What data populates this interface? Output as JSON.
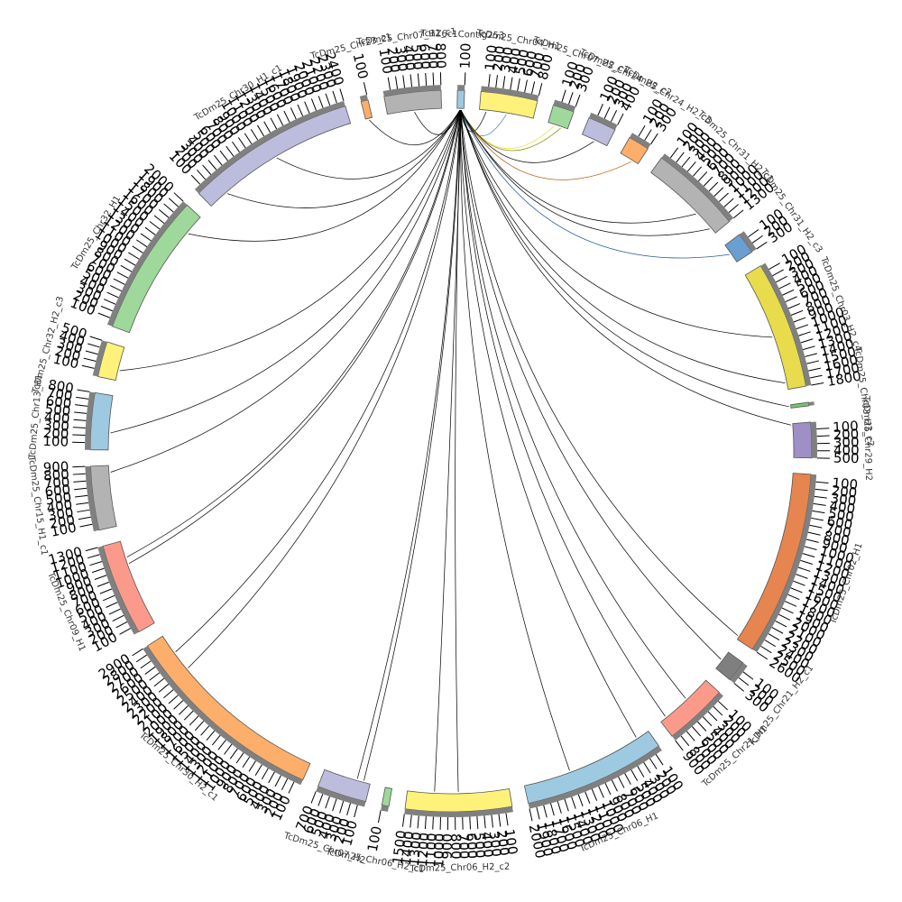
{
  "chart_data": {
    "type": "chord",
    "layout": "circular",
    "tick_step": 100,
    "segments": [
      {
        "name": "TcDm25_Chr07_H1_c1",
        "length": 800,
        "color": "#b3b3b3"
      },
      {
        "name": "Tc1Z6c1Contig253",
        "length": 100,
        "color": "#9ecae1"
      },
      {
        "name": "TcDm25_Chr04_H1",
        "length": 800,
        "color": "#fff27a"
      },
      {
        "name": "TcDm25_Chr07_H2_c1",
        "length": 300,
        "color": "#9fd89b"
      },
      {
        "name": "TcDm25_Chr24_H2_c2",
        "length": 400,
        "color": "#bcbddc"
      },
      {
        "name": "TcDm25_Chr24_H2_c3",
        "length": 300,
        "color": "#fdae6b"
      },
      {
        "name": "TcDm25_Chr31_H2_c1",
        "length": 1300,
        "color": "#b3b3b3"
      },
      {
        "name": "TcDm25_Chr31_H2_c3",
        "length": 300,
        "color": "#6a9fd0"
      },
      {
        "name": "TcDm25_Chr03_H2_c4",
        "length": 1800,
        "color": "#e8dc4c"
      },
      {
        "name": "TcDm25_Chr03_H2_c2",
        "length": 50,
        "color": "#74c476"
      },
      {
        "name": "TcDm25_Chr29_H2",
        "length": 500,
        "color": "#9e8fc6"
      },
      {
        "name": "TcDm25_Chr02_H1",
        "length": 2600,
        "color": "#e6854f"
      },
      {
        "name": "TcDm25_Chr21_H2_c1",
        "length": 300,
        "color": "#7f7f7f"
      },
      {
        "name": "TcDm25_Chr21_H1",
        "length": 900,
        "color": "#fb9a8b"
      },
      {
        "name": "TcDm25_Chr06_H1",
        "length": 2000,
        "color": "#9ecae1"
      },
      {
        "name": "TcDm25_Chr06_H2_c2",
        "length": 1500,
        "color": "#fff27a"
      },
      {
        "name": "TcDm25_Chr06_H2_c1",
        "length": 100,
        "color": "#9fd89b"
      },
      {
        "name": "TcDm25_Chr07_H2",
        "length": 700,
        "color": "#bcbddc"
      },
      {
        "name": "TcDm25_Chr30_H2_c1",
        "length": 2900,
        "color": "#fdae6b"
      },
      {
        "name": "TcDm25_Chr09_H1",
        "length": 1300,
        "color": "#fb9a8b"
      },
      {
        "name": "TcDm25_Chr15_H1_c1",
        "length": 900,
        "color": "#b3b3b3"
      },
      {
        "name": "TcDm25_Chr13_H1",
        "length": 800,
        "color": "#9ecae1"
      },
      {
        "name": "TcDm25_Chr32_H2_c3",
        "length": 500,
        "color": "#fff27a"
      },
      {
        "name": "TcDm25_Chr32_H1",
        "length": 2000,
        "color": "#9fd89b"
      },
      {
        "name": "TcDm25_Chr30_H1_c1",
        "length": 2400,
        "color": "#bcbddc"
      },
      {
        "name": "TcDm25_Chr23_c1",
        "length": 100,
        "color": "#fdae6b"
      }
    ],
    "links": [
      {
        "from": 1,
        "from_pos": 40,
        "to": 2,
        "to_pos": 100,
        "color": "#000000"
      },
      {
        "from": 1,
        "from_pos": 50,
        "to": 2,
        "to_pos": 400,
        "color": "#2c7fb8"
      },
      {
        "from": 1,
        "from_pos": 60,
        "to": 3,
        "to_pos": 100,
        "color": "#dede2a"
      },
      {
        "from": 1,
        "from_pos": 50,
        "to": 3,
        "to_pos": 200,
        "color": "#8c8c00"
      },
      {
        "from": 1,
        "from_pos": 50,
        "to": 4,
        "to_pos": 200,
        "color": "#000000"
      },
      {
        "from": 1,
        "from_pos": 40,
        "to": 5,
        "to_pos": 200,
        "color": "#b35a00"
      },
      {
        "from": 1,
        "from_pos": 50,
        "to": 6,
        "to_pos": 900,
        "color": "#000000"
      },
      {
        "from": 1,
        "from_pos": 60,
        "to": 6,
        "to_pos": 1200,
        "color": "#000000"
      },
      {
        "from": 1,
        "from_pos": 50,
        "to": 7,
        "to_pos": 150,
        "color": "#1f4f8f"
      },
      {
        "from": 1,
        "from_pos": 50,
        "to": 8,
        "to_pos": 1700,
        "color": "#000000"
      },
      {
        "from": 1,
        "from_pos": 40,
        "to": 8,
        "to_pos": 1000,
        "color": "#000000"
      },
      {
        "from": 1,
        "from_pos": 50,
        "to": 9,
        "to_pos": 25,
        "color": "#000000"
      },
      {
        "from": 1,
        "from_pos": 60,
        "to": 10,
        "to_pos": 20,
        "color": "#000000"
      },
      {
        "from": 1,
        "from_pos": 50,
        "to": 11,
        "to_pos": 2550,
        "color": "#000000"
      },
      {
        "from": 1,
        "from_pos": 40,
        "to": 12,
        "to_pos": 150,
        "color": "#000000"
      },
      {
        "from": 1,
        "from_pos": 50,
        "to": 13,
        "to_pos": 400,
        "color": "#000000"
      },
      {
        "from": 1,
        "from_pos": 60,
        "to": 13,
        "to_pos": 800,
        "color": "#000000"
      },
      {
        "from": 1,
        "from_pos": 50,
        "to": 14,
        "to_pos": 1300,
        "color": "#000000"
      },
      {
        "from": 1,
        "from_pos": 40,
        "to": 14,
        "to_pos": 200,
        "color": "#000000"
      },
      {
        "from": 1,
        "from_pos": 50,
        "to": 15,
        "to_pos": 750,
        "color": "#000000"
      },
      {
        "from": 1,
        "from_pos": 60,
        "to": 15,
        "to_pos": 1100,
        "color": "#000000"
      },
      {
        "from": 1,
        "from_pos": 50,
        "to": 17,
        "to_pos": 100,
        "color": "#000000"
      },
      {
        "from": 1,
        "from_pos": 40,
        "to": 17,
        "to_pos": 200,
        "color": "#000000"
      },
      {
        "from": 1,
        "from_pos": 50,
        "to": 18,
        "to_pos": 2600,
        "color": "#000000"
      },
      {
        "from": 1,
        "from_pos": 60,
        "to": 18,
        "to_pos": 2300,
        "color": "#000000"
      },
      {
        "from": 1,
        "from_pos": 50,
        "to": 19,
        "to_pos": 950,
        "color": "#000000"
      },
      {
        "from": 1,
        "from_pos": 40,
        "to": 19,
        "to_pos": 1050,
        "color": "#000000"
      },
      {
        "from": 1,
        "from_pos": 50,
        "to": 21,
        "to_pos": 250,
        "color": "#000000"
      },
      {
        "from": 1,
        "from_pos": 60,
        "to": 20,
        "to_pos": 800,
        "color": "#000000"
      },
      {
        "from": 1,
        "from_pos": 50,
        "to": 22,
        "to_pos": 150,
        "color": "#000000"
      },
      {
        "from": 1,
        "from_pos": 40,
        "to": 23,
        "to_pos": 1700,
        "color": "#000000"
      },
      {
        "from": 1,
        "from_pos": 50,
        "to": 24,
        "to_pos": 300,
        "color": "#000000"
      },
      {
        "from": 1,
        "from_pos": 60,
        "to": 24,
        "to_pos": 1200,
        "color": "#000000"
      },
      {
        "from": 1,
        "from_pos": 50,
        "to": 0,
        "to_pos": 400,
        "color": "#000000"
      },
      {
        "from": 1,
        "from_pos": 40,
        "to": 25,
        "to_pos": 50,
        "color": "#000000"
      }
    ]
  }
}
